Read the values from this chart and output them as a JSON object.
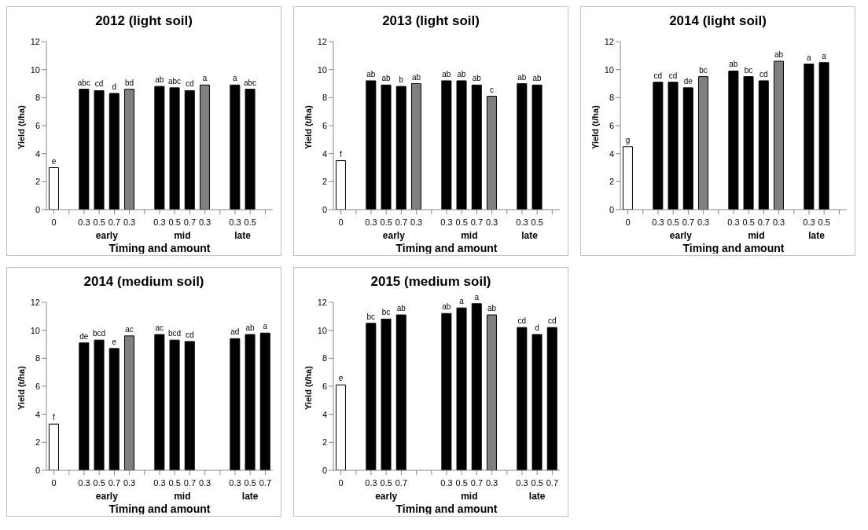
{
  "chart_data": [
    {
      "type": "bar",
      "title": "2012 (light soil)",
      "xlabel": "Timing and amount",
      "ylabel": "Yield (t/ha)",
      "annotations": [
        "early",
        "mid",
        "late"
      ],
      "categories": [
        "0",
        null,
        "0.3",
        "0.5",
        "0.7",
        "0.3",
        null,
        "0.3",
        "0.5",
        "0.7",
        "0.3",
        null,
        "0.3",
        "0.5",
        null
      ],
      "values": [
        3.0,
        null,
        8.6,
        8.5,
        8.3,
        8.6,
        null,
        8.8,
        8.7,
        8.5,
        8.9,
        null,
        8.9,
        8.6,
        null
      ],
      "colors": [
        "#ffffff",
        null,
        "#000000",
        "#000000",
        "#000000",
        "#808080",
        null,
        "#000000",
        "#000000",
        "#000000",
        "#808080",
        null,
        "#000000",
        "#000000",
        null
      ],
      "value_labels": [
        "e",
        null,
        "abc",
        "cd",
        "d",
        "bd",
        null,
        "ab",
        "abc",
        "cd",
        "a",
        null,
        "a",
        "abc",
        null
      ],
      "ylim": [
        0,
        12
      ],
      "yticks": [
        0,
        2,
        4,
        6,
        8,
        10,
        12
      ]
    },
    {
      "type": "bar",
      "title": "2013 (light soil)",
      "xlabel": "Timing and amount",
      "ylabel": "Yield (t/ha)",
      "annotations": [
        "early",
        "mid",
        "late"
      ],
      "categories": [
        "0",
        null,
        "0.3",
        "0.5",
        "0.7",
        "0.3",
        null,
        "0.3",
        "0.5",
        "0.7",
        "0.3",
        null,
        "0.3",
        "0.5",
        null
      ],
      "values": [
        3.5,
        null,
        9.2,
        8.9,
        8.8,
        9.0,
        null,
        9.2,
        9.2,
        8.9,
        8.1,
        null,
        9.0,
        8.9,
        null
      ],
      "colors": [
        "#ffffff",
        null,
        "#000000",
        "#000000",
        "#000000",
        "#808080",
        null,
        "#000000",
        "#000000",
        "#000000",
        "#808080",
        null,
        "#000000",
        "#000000",
        null
      ],
      "value_labels": [
        "f",
        null,
        "ab",
        "ab",
        "b",
        "ab",
        null,
        "ab",
        "ab",
        "ab",
        "c",
        null,
        "ab",
        "ab",
        null
      ],
      "ylim": [
        0,
        12
      ],
      "yticks": [
        0,
        2,
        4,
        6,
        8,
        10,
        12
      ]
    },
    {
      "type": "bar",
      "title": "2014 (light soil)",
      "xlabel": "Timing and amount",
      "ylabel": "Yield (t/ha)",
      "annotations": [
        "early",
        "mid",
        "late"
      ],
      "categories": [
        "0",
        null,
        "0.3",
        "0.5",
        "0.7",
        "0.3",
        null,
        "0.3",
        "0.5",
        "0.7",
        "0.3",
        null,
        "0.3",
        "0.5",
        null
      ],
      "values": [
        4.5,
        null,
        9.1,
        9.1,
        8.7,
        9.5,
        null,
        9.9,
        9.5,
        9.2,
        10.6,
        null,
        10.4,
        10.5,
        null
      ],
      "colors": [
        "#ffffff",
        null,
        "#000000",
        "#000000",
        "#000000",
        "#808080",
        null,
        "#000000",
        "#000000",
        "#000000",
        "#808080",
        null,
        "#000000",
        "#000000",
        null
      ],
      "value_labels": [
        "g",
        null,
        "cd",
        "cd",
        "de",
        "bc",
        null,
        "ab",
        "bc",
        "cd",
        "ab",
        null,
        "a",
        "a",
        null
      ],
      "ylim": [
        0,
        12
      ],
      "yticks": [
        0,
        2,
        4,
        6,
        8,
        10,
        12
      ]
    },
    {
      "type": "bar",
      "title": "2014 (medium soil)",
      "xlabel": "Timing and amount",
      "ylabel": "Yield (t/ha)",
      "annotations": [
        "early",
        "mid",
        "late"
      ],
      "categories": [
        "0",
        null,
        "0.3",
        "0.5",
        "0.7",
        "0.3",
        null,
        "0.3",
        "0.5",
        "0.7",
        "0.3",
        null,
        "0.3",
        "0.5",
        "0.7"
      ],
      "values": [
        3.3,
        null,
        9.1,
        9.3,
        8.7,
        9.6,
        null,
        9.7,
        9.3,
        9.2,
        null,
        null,
        9.4,
        9.7,
        9.8
      ],
      "colors": [
        "#ffffff",
        null,
        "#000000",
        "#000000",
        "#000000",
        "#808080",
        null,
        "#000000",
        "#000000",
        "#000000",
        null,
        null,
        "#000000",
        "#000000",
        "#000000"
      ],
      "value_labels": [
        "f",
        null,
        "de",
        "bcd",
        "e",
        "ac",
        null,
        "ac",
        "bcd",
        "cd",
        null,
        null,
        "ad",
        "ab",
        "a"
      ],
      "ylim": [
        0,
        12
      ],
      "yticks": [
        0,
        2,
        4,
        6,
        8,
        10,
        12
      ]
    },
    {
      "type": "bar",
      "title": "2015 (medium soil)",
      "xlabel": "Timing and amount",
      "ylabel": "Yield (t/ha)",
      "annotations": [
        "early",
        "mid",
        "late"
      ],
      "categories": [
        "0",
        null,
        "0.3",
        "0.5",
        "0.7",
        null,
        null,
        "0.3",
        "0.5",
        "0.7",
        "0.3",
        null,
        "0.3",
        "0.5",
        "0.7"
      ],
      "values": [
        6.1,
        null,
        10.5,
        10.8,
        11.1,
        null,
        null,
        11.2,
        11.6,
        11.9,
        11.1,
        null,
        10.2,
        9.7,
        10.2
      ],
      "colors": [
        "#ffffff",
        null,
        "#000000",
        "#000000",
        "#000000",
        null,
        null,
        "#000000",
        "#000000",
        "#000000",
        "#808080",
        null,
        "#000000",
        "#000000",
        "#000000"
      ],
      "value_labels": [
        "e",
        null,
        "bc",
        "bc",
        "ab",
        null,
        null,
        "ab",
        "a",
        "a",
        "ab",
        null,
        "cd",
        "d",
        "cd"
      ],
      "ylim": [
        0,
        12
      ],
      "yticks": [
        0,
        2,
        4,
        6,
        8,
        10,
        12
      ]
    }
  ]
}
